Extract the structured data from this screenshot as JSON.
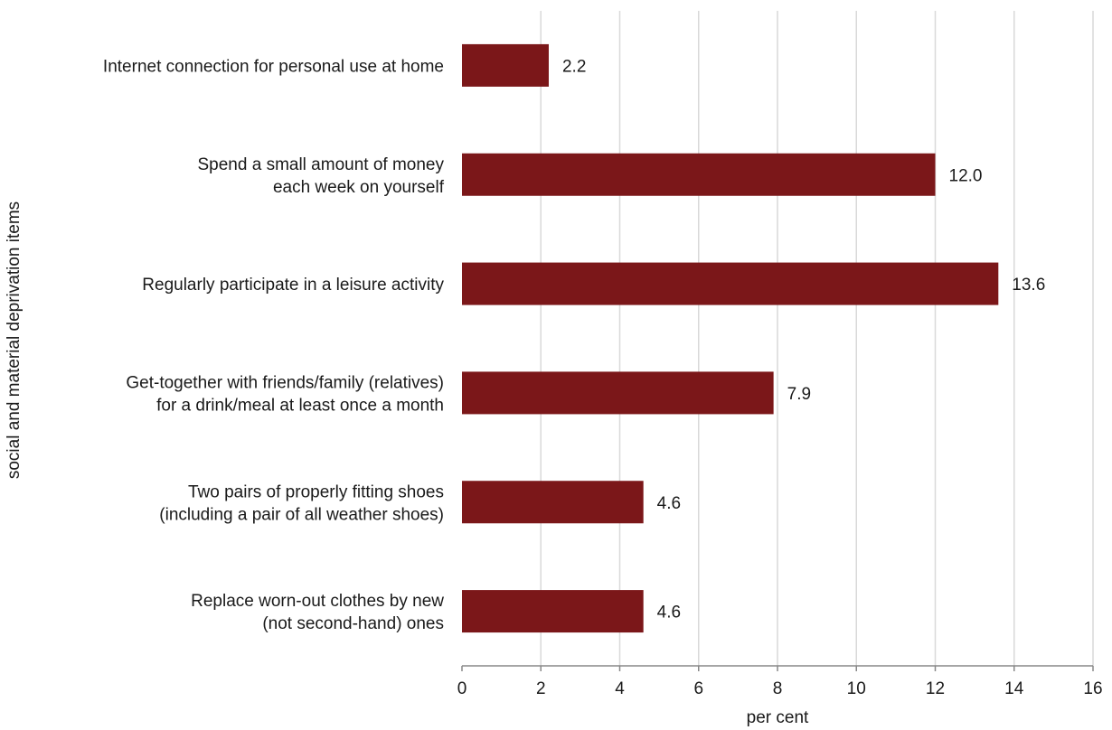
{
  "chart_data": {
    "type": "bar",
    "orientation": "horizontal",
    "categories": [
      [
        "Internet connection for personal use at home"
      ],
      [
        "Spend a small amount of money",
        "each week on yourself"
      ],
      [
        "Regularly participate in a leisure activity"
      ],
      [
        "Get-together with friends/family (relatives)",
        "for a drink/meal at least once a month"
      ],
      [
        "Two pairs of properly fitting shoes",
        "(including a pair of all weather shoes)"
      ],
      [
        "Replace worn-out clothes by new",
        "(not second-hand) ones"
      ]
    ],
    "values": [
      2.2,
      12.0,
      13.6,
      7.9,
      4.6,
      4.6
    ],
    "value_labels": [
      "2.2",
      "12.0",
      "13.6",
      "7.9",
      "4.6",
      "4.6"
    ],
    "xlabel": "per cent",
    "ylabel": "social and material deprivation items",
    "xlim": [
      0,
      16
    ],
    "xticks": [
      0,
      2,
      4,
      6,
      8,
      10,
      12,
      14,
      16
    ],
    "xtick_labels": [
      "0",
      "2",
      "4",
      "6",
      "8",
      "10",
      "12",
      "14",
      "16"
    ],
    "grid": "vertical",
    "legend": "none",
    "colors": {
      "bar": "#7b1719",
      "grid": "#d9d9d9",
      "axis": "#888888"
    }
  }
}
